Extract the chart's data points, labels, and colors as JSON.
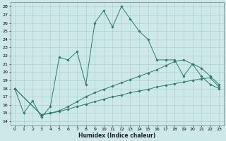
{
  "xlabel": "Humidex (Indice chaleur)",
  "background_color": "#cce8e8",
  "line_color": "#2d7d6e",
  "grid_color": "#aacccc",
  "xlim": [
    -0.5,
    23.5
  ],
  "ylim": [
    13.5,
    28.5
  ],
  "yticks": [
    14,
    15,
    16,
    17,
    18,
    19,
    20,
    21,
    22,
    23,
    24,
    25,
    26,
    27,
    28
  ],
  "xticks": [
    0,
    1,
    2,
    3,
    4,
    5,
    6,
    7,
    8,
    9,
    10,
    11,
    12,
    13,
    14,
    15,
    16,
    17,
    18,
    19,
    20,
    21,
    22,
    23
  ],
  "s1x": [
    0,
    1,
    2,
    3,
    4,
    5,
    6,
    7,
    8,
    9,
    10,
    11,
    12,
    13,
    14,
    15,
    16,
    17,
    18,
    19,
    20,
    21,
    22,
    23
  ],
  "s1y": [
    18,
    15,
    16.5,
    14.5,
    15.8,
    21.8,
    21.5,
    22.5,
    18.5,
    26.0,
    27.5,
    25.5,
    28.0,
    26.5,
    25.0,
    24.0,
    21.5,
    21.5,
    21.5,
    19.5,
    21.0,
    19.5,
    18.5,
    18.0
  ],
  "s2x": [
    0,
    3,
    4,
    5,
    6,
    7,
    8,
    9,
    10,
    11,
    12,
    13,
    14,
    15,
    16,
    17,
    18,
    19,
    20,
    21,
    22,
    23
  ],
  "s2y": [
    18.0,
    14.8,
    15.0,
    15.3,
    15.8,
    16.4,
    17.0,
    17.5,
    17.9,
    18.3,
    18.7,
    19.1,
    19.5,
    19.9,
    20.3,
    20.8,
    21.3,
    21.5,
    21.0,
    20.5,
    19.5,
    18.5
  ],
  "s3x": [
    0,
    3,
    4,
    5,
    6,
    7,
    8,
    9,
    10,
    11,
    12,
    13,
    14,
    15,
    16,
    17,
    18,
    19,
    20,
    21,
    22,
    23
  ],
  "s3y": [
    18.0,
    14.8,
    15.0,
    15.2,
    15.5,
    15.8,
    16.1,
    16.4,
    16.7,
    17.0,
    17.2,
    17.5,
    17.7,
    17.9,
    18.2,
    18.4,
    18.6,
    18.8,
    19.0,
    19.2,
    19.3,
    18.2
  ]
}
